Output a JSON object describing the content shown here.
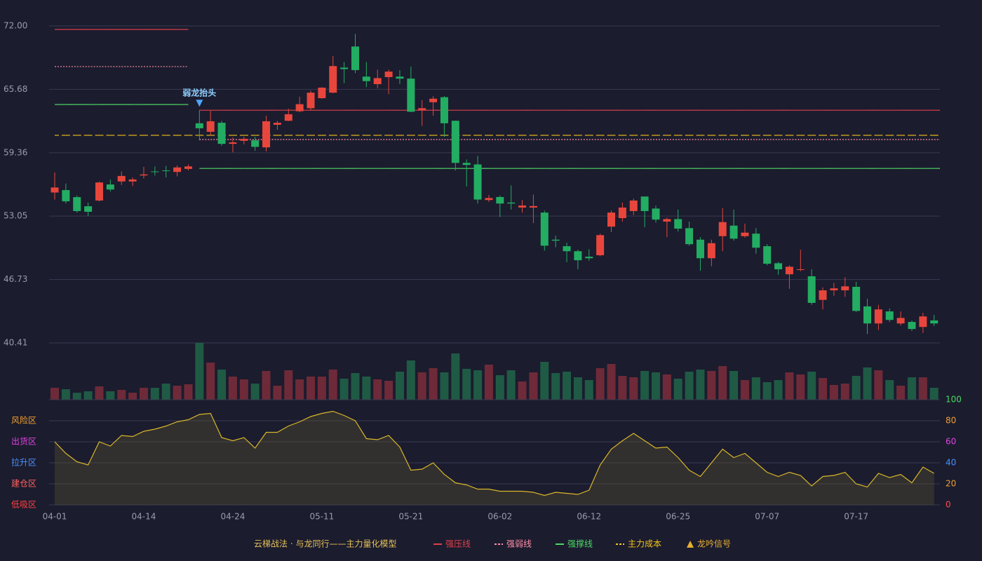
{
  "chart_data": [
    {
      "type": "candlestick",
      "legend_title": "云梯战法 · 与龙同行——主力量化模型",
      "categories": [
        "04-01",
        null,
        null,
        null,
        null,
        null,
        null,
        null,
        "04-14",
        null,
        null,
        null,
        null,
        null,
        null,
        null,
        "04-24",
        null,
        null,
        null,
        null,
        null,
        null,
        null,
        "05-11",
        null,
        null,
        null,
        null,
        null,
        null,
        null,
        "05-21",
        null,
        null,
        null,
        null,
        null,
        null,
        null,
        "06-02",
        null,
        null,
        null,
        null,
        null,
        null,
        null,
        "06-12",
        null,
        null,
        null,
        null,
        null,
        null,
        null,
        "06-25",
        null,
        null,
        null,
        null,
        null,
        null,
        null,
        "07-07",
        null,
        null,
        null,
        null,
        null,
        null,
        null,
        "07-17",
        null,
        null,
        null,
        null,
        null,
        null,
        null
      ],
      "open": [
        55.4,
        55.64,
        54.94,
        54.03,
        54.6,
        56.2,
        56.5,
        56.5,
        57.1,
        57.5,
        57.6,
        57.45,
        57.75,
        62.3,
        61.45,
        62.35,
        60.25,
        60.55,
        60.6,
        59.9,
        62.15,
        62.55,
        63.5,
        63.8,
        64.8,
        65.35,
        67.85,
        69.95,
        66.95,
        66.2,
        66.9,
        66.95,
        66.75,
        63.6,
        64.4,
        64.9,
        62.55,
        58.35,
        58.2,
        54.65,
        54.95,
        54.4,
        53.9,
        53.9,
        53.4,
        50.7,
        50.05,
        49.55,
        49.0,
        49.15,
        52.0,
        52.85,
        53.55,
        55.0,
        53.8,
        52.5,
        52.75,
        51.85,
        50.7,
        48.85,
        51.05,
        52.1,
        51.05,
        51.3,
        50.05,
        48.35,
        47.25,
        47.7,
        47.05,
        44.7,
        45.65,
        45.65,
        46.0,
        44.05,
        42.35,
        43.55,
        42.35,
        42.5,
        42.0,
        42.65
      ],
      "high": [
        57.4,
        56.3,
        55.1,
        54.4,
        56.5,
        56.7,
        57.5,
        56.9,
        57.95,
        58.0,
        58.05,
        58.1,
        58.2,
        63.6,
        63.55,
        62.55,
        60.9,
        60.95,
        60.95,
        63.05,
        62.55,
        63.75,
        64.95,
        65.55,
        65.9,
        69.0,
        68.4,
        71.2,
        68.4,
        67.65,
        67.65,
        67.6,
        67.95,
        64.6,
        65.0,
        65.0,
        62.55,
        58.7,
        59.05,
        55.15,
        55.1,
        56.1,
        54.65,
        55.2,
        53.6,
        51.1,
        50.4,
        49.7,
        49.75,
        51.3,
        53.6,
        54.4,
        54.8,
        55.0,
        54.1,
        52.9,
        53.7,
        52.5,
        50.95,
        50.7,
        53.85,
        53.7,
        52.3,
        51.85,
        50.25,
        48.5,
        48.15,
        49.7,
        47.75,
        45.95,
        46.4,
        46.95,
        46.5,
        44.8,
        44.2,
        43.85,
        43.55,
        42.65,
        43.4,
        43.2
      ],
      "low": [
        54.7,
        54.3,
        53.4,
        53.05,
        54.5,
        55.5,
        56.15,
        56.05,
        56.8,
        57.1,
        56.9,
        57.0,
        57.6,
        60.6,
        61.1,
        60.05,
        59.4,
        60.2,
        59.55,
        59.5,
        61.65,
        62.5,
        63.4,
        63.6,
        64.75,
        65.3,
        66.3,
        67.3,
        65.9,
        65.8,
        65.2,
        66.2,
        63.4,
        62.05,
        63.05,
        60.95,
        57.6,
        56.0,
        54.3,
        54.45,
        52.95,
        53.7,
        53.4,
        52.35,
        49.6,
        49.95,
        48.45,
        47.75,
        48.6,
        49.05,
        51.45,
        52.5,
        53.15,
        51.95,
        52.4,
        50.95,
        51.5,
        50.1,
        47.6,
        48.05,
        49.55,
        50.6,
        50.9,
        49.3,
        48.15,
        47.2,
        45.8,
        47.55,
        44.2,
        43.75,
        45.1,
        45.0,
        43.5,
        41.3,
        41.7,
        42.5,
        42.15,
        41.6,
        41.4,
        42.1
      ],
      "close": [
        55.9,
        54.52,
        53.55,
        53.48,
        56.4,
        55.7,
        57.05,
        56.7,
        57.2,
        57.45,
        57.55,
        57.9,
        58.0,
        61.8,
        62.5,
        60.25,
        60.4,
        60.75,
        59.95,
        62.5,
        62.35,
        63.2,
        64.2,
        65.35,
        65.85,
        68.0,
        67.7,
        67.6,
        66.5,
        66.8,
        67.45,
        66.75,
        63.45,
        63.8,
        64.75,
        62.3,
        58.35,
        58.15,
        54.7,
        54.85,
        54.3,
        54.3,
        54.1,
        54.05,
        50.1,
        50.6,
        49.55,
        48.65,
        48.85,
        51.15,
        53.4,
        53.9,
        54.6,
        53.55,
        52.7,
        52.75,
        51.8,
        50.25,
        48.85,
        50.35,
        52.45,
        50.8,
        51.4,
        49.9,
        48.3,
        47.75,
        48.0,
        47.75,
        44.4,
        45.65,
        45.85,
        46.05,
        43.6,
        42.35,
        43.75,
        42.7,
        42.9,
        41.8,
        43.05,
        42.35
      ],
      "up_color": "#e8463c",
      "down_color": "#23ad62",
      "ylim": [
        40.41,
        72
      ],
      "yticks": [
        {
          "value": 72,
          "label": "72.00"
        },
        65.68,
        59.36,
        53.05,
        46.73,
        40.41
      ],
      "grid": true,
      "levels": [
        {
          "name": "强压线",
          "color": "#e0404a",
          "style": "solid",
          "values": [
            71.65,
            71.65,
            71.65,
            71.65,
            71.65,
            71.65,
            71.65,
            71.65,
            71.65,
            71.65,
            71.65,
            71.65,
            71.65,
            63.6,
            63.6,
            63.6,
            63.6,
            63.6,
            63.6,
            63.6,
            63.6,
            63.6,
            63.6,
            63.6,
            63.6,
            63.6,
            63.6,
            63.6,
            63.6,
            63.6,
            63.6,
            63.6,
            63.6,
            63.6,
            63.6,
            63.6,
            63.6,
            63.6,
            63.6,
            63.6,
            63.6,
            63.6,
            63.6,
            63.6,
            63.6,
            63.6,
            63.6,
            63.6,
            63.6,
            63.6,
            63.6,
            63.6,
            63.6,
            63.6,
            63.6,
            63.6,
            63.6,
            63.6,
            63.6,
            63.6,
            63.6,
            63.6,
            63.6,
            63.6,
            63.6,
            63.6,
            63.6,
            63.6,
            63.6,
            63.6,
            63.6,
            63.6,
            63.6,
            63.6,
            63.6,
            63.6,
            63.6,
            63.6,
            63.6,
            63.6
          ]
        },
        {
          "name": "强弱线",
          "color": "#ff8fa8",
          "style": "dotted",
          "values": [
            67.95,
            67.95,
            67.95,
            67.95,
            67.95,
            67.95,
            67.95,
            67.95,
            67.95,
            67.95,
            67.95,
            67.95,
            67.95,
            60.68,
            60.68,
            60.68,
            60.68,
            60.68,
            60.68,
            60.68,
            60.68,
            60.68,
            60.68,
            60.68,
            60.68,
            60.68,
            60.68,
            60.68,
            60.68,
            60.68,
            60.68,
            60.68,
            60.68,
            60.68,
            60.68,
            60.68,
            60.68,
            60.68,
            60.68,
            60.68,
            60.68,
            60.68,
            60.68,
            60.68,
            60.68,
            60.68,
            60.68,
            60.68,
            60.68,
            60.68,
            60.68,
            60.68,
            60.68,
            60.68,
            60.68,
            60.68,
            60.68,
            60.68,
            60.68,
            60.68,
            60.68,
            60.68,
            60.68,
            60.68,
            60.68,
            60.68,
            60.68,
            60.68,
            60.68,
            60.68,
            60.68,
            60.68,
            60.68,
            60.68,
            60.68,
            60.68,
            60.68,
            60.68,
            60.68,
            60.68
          ]
        },
        {
          "name": "强撑线",
          "color": "#4cd964",
          "style": "solid",
          "values": [
            64.17,
            64.17,
            64.17,
            64.17,
            64.17,
            64.17,
            64.17,
            64.17,
            64.17,
            64.17,
            64.17,
            64.17,
            64.17,
            57.8,
            57.8,
            57.8,
            57.8,
            57.8,
            57.8,
            57.8,
            57.8,
            57.8,
            57.8,
            57.8,
            57.8,
            57.8,
            57.8,
            57.8,
            57.8,
            57.8,
            57.8,
            57.8,
            57.8,
            57.8,
            57.8,
            57.8,
            57.8,
            57.8,
            57.8,
            57.8,
            57.8,
            57.8,
            57.8,
            57.8,
            57.8,
            57.8,
            57.8,
            57.8,
            57.8,
            57.8,
            57.8,
            57.8,
            57.8,
            57.8,
            57.8,
            57.8,
            57.8,
            57.8,
            57.8,
            57.8,
            57.8,
            57.8,
            57.8,
            57.8,
            57.8,
            57.8,
            57.8,
            57.8,
            57.8,
            57.8,
            57.8,
            57.8,
            57.8,
            57.8,
            57.8,
            57.8,
            57.8,
            57.8,
            57.8,
            57.8
          ]
        },
        {
          "name": "主力成本",
          "color": "#f5c518",
          "style": "dashed",
          "values": [
            61.1,
            61.1,
            61.1,
            61.1,
            61.1,
            61.1,
            61.1,
            61.1,
            61.1,
            61.1,
            61.1,
            61.1,
            61.1,
            61.1,
            61.1,
            61.1,
            61.1,
            61.1,
            61.1,
            61.1,
            61.1,
            61.1,
            61.1,
            61.1,
            61.1,
            61.1,
            61.1,
            61.1,
            61.1,
            61.1,
            61.1,
            61.1,
            61.1,
            61.1,
            61.1,
            61.1,
            61.1,
            61.1,
            61.1,
            61.1,
            61.1,
            61.1,
            61.1,
            61.1,
            61.1,
            61.1,
            61.1,
            61.1,
            61.1,
            61.1,
            61.1,
            61.1,
            61.1,
            61.1,
            61.1,
            61.1,
            61.1,
            61.1,
            61.1,
            61.1,
            61.1,
            61.1,
            61.1,
            61.1,
            61.1,
            61.1,
            61.1,
            61.1,
            61.1,
            61.1,
            61.1,
            61.1,
            61.1,
            61.1,
            61.1,
            61.1,
            61.1,
            61.1,
            61.1,
            61.1
          ]
        }
      ],
      "signals": [
        {
          "label": "弱龙抬头",
          "index": 13,
          "color": "#4da6ff"
        }
      ],
      "signal_legend": "龙吟信号",
      "signal_legend_color": "#e8b030"
    },
    {
      "type": "bar",
      "values": [
        17,
        15,
        10,
        12,
        19,
        12,
        14,
        10,
        17,
        17,
        23,
        20,
        22,
        81,
        53,
        43,
        33,
        29,
        23,
        41,
        20,
        42,
        29,
        33,
        33,
        43,
        30,
        38,
        33,
        29,
        27,
        40,
        56,
        39,
        45,
        39,
        66,
        44,
        42,
        50,
        35,
        42,
        26,
        39,
        54,
        38,
        40,
        32,
        28,
        45,
        51,
        34,
        32,
        41,
        39,
        36,
        30,
        40,
        43,
        41,
        48,
        41,
        28,
        32,
        25,
        28,
        39,
        36,
        40,
        31,
        21,
        23,
        34,
        46,
        42,
        28,
        20,
        32,
        32,
        17
      ],
      "up_color": "#6e2a38",
      "down_color": "#1f5a45",
      "ylim": [
        0,
        81
      ]
    },
    {
      "type": "line",
      "values": [
        60,
        49,
        41,
        38,
        60,
        56,
        66,
        65,
        70,
        72,
        75,
        79,
        81,
        86,
        87,
        64,
        61,
        64,
        54,
        69,
        69,
        75,
        79,
        84,
        87,
        89,
        85,
        80,
        63,
        62,
        66,
        55,
        33,
        34,
        40,
        29,
        21,
        19,
        15,
        15,
        13,
        13,
        13,
        12,
        9,
        12,
        11,
        10,
        14,
        38,
        53,
        61,
        68,
        61,
        54,
        55,
        45,
        33,
        27,
        40,
        53,
        45,
        49,
        40,
        31,
        27,
        31,
        28,
        18,
        27,
        28,
        31,
        20,
        17,
        30,
        26,
        29,
        21,
        36,
        30
      ],
      "color": "#d9b62a",
      "ylim": [
        0,
        100
      ],
      "yticks": [
        0,
        20,
        40,
        60,
        80,
        100
      ],
      "ytick_colors": [
        "#ff4d4d",
        "#f0a030",
        "#4a90ff",
        "#e040e0",
        "#f0a030",
        "#4cd964"
      ],
      "zones": [
        {
          "label": "风险区",
          "value": 80,
          "color": "#f0a030"
        },
        {
          "label": "出货区",
          "value": 60,
          "color": "#e040e0"
        },
        {
          "label": "拉升区",
          "value": 40,
          "color": "#4a90ff"
        },
        {
          "label": "建仓区",
          "value": 20,
          "color": "#ff6060"
        },
        {
          "label": "低吸区",
          "value": 0,
          "color": "#ff4040"
        }
      ]
    }
  ]
}
